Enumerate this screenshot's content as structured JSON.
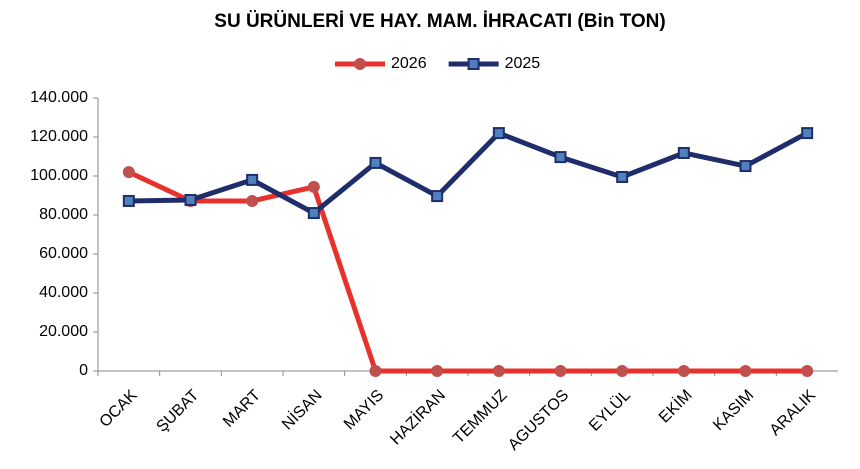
{
  "chart_data": {
    "type": "line",
    "title": "SU ÜRÜNLERİ VE HAY. MAM. İHRACATI (Bin TON)",
    "categories": [
      "OCAK",
      "ŞUBAT",
      "MART",
      "NİSAN",
      "MAYIS",
      "HAZİRAN",
      "TEMMUZ",
      "AGUSTOS",
      "EYLÜL",
      "EKİM",
      "KASIM",
      "ARALIK"
    ],
    "series": [
      {
        "name": "2026",
        "color": "#e8312a",
        "marker_color": "#c0504d",
        "marker": "circle",
        "values": [
          102000,
          87200,
          87200,
          94400,
          0,
          0,
          0,
          0,
          0,
          0,
          0,
          0
        ]
      },
      {
        "name": "2025",
        "color": "#1f2d6b",
        "marker_color": "#4f81bd",
        "marker": "square",
        "values": [
          87200,
          87700,
          98000,
          81000,
          106700,
          89700,
          122000,
          109700,
          99500,
          111800,
          105100,
          122000
        ]
      }
    ],
    "ylim": [
      0,
      140000
    ],
    "yticks": [
      0,
      {
        "value": 20000,
        "label": "20.000"
      },
      {
        "value": 40000,
        "label": "40.000"
      },
      {
        "value": 60000,
        "label": "60.000"
      },
      {
        "value": 80000,
        "label": "80.000"
      },
      {
        "value": 100000,
        "label": "100.000"
      },
      {
        "value": 120000,
        "label": "120.000"
      },
      {
        "value": 140000,
        "label": "140.000"
      }
    ],
    "grid": false,
    "legend": "top"
  }
}
